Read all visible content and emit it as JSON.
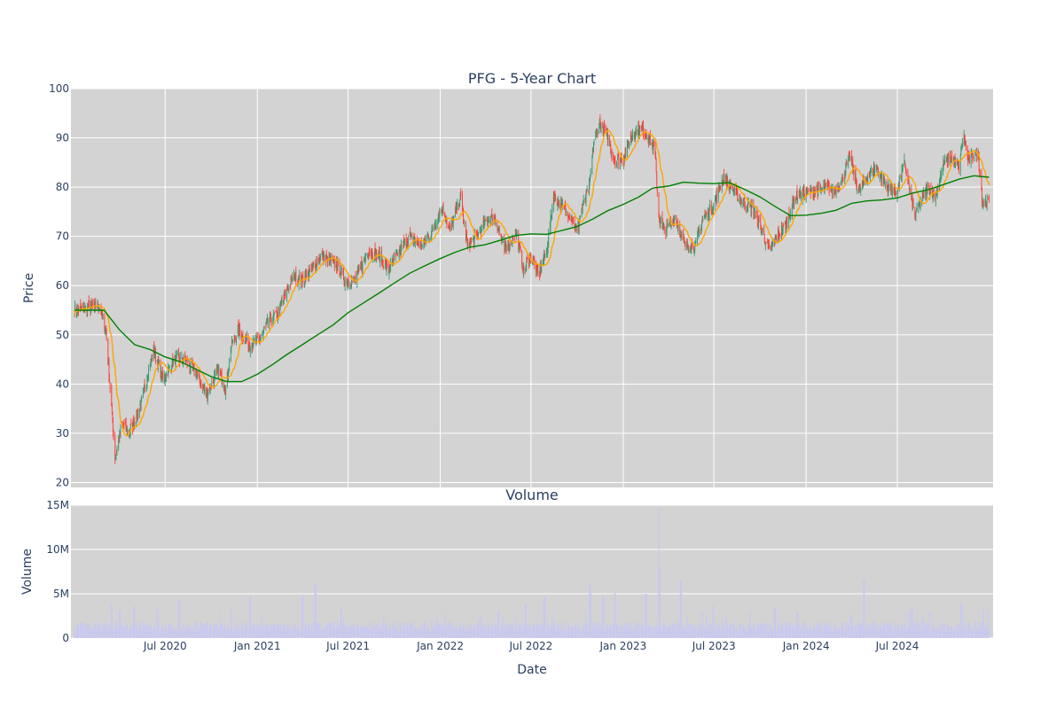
{
  "chart_data": [
    {
      "type": "candlestick",
      "title": "PFG - 5-Year Chart",
      "ylabel": "Price",
      "ylim": [
        19,
        100
      ],
      "yticks": [
        20,
        30,
        40,
        50,
        60,
        70,
        80,
        90,
        100
      ],
      "xlim": [
        "2019-12-26",
        "2025-01-08"
      ],
      "grid": true,
      "plot_background": "#d3d3d3",
      "colors": {
        "increasing": "#3d9970",
        "decreasing": "#ff4136",
        "ma_short": "orange",
        "ma_long": "green"
      },
      "close_anchors": [
        {
          "date": "2020-01-02",
          "close": 55
        },
        {
          "date": "2020-02-20",
          "close": 56
        },
        {
          "date": "2020-03-05",
          "close": 51
        },
        {
          "date": "2020-03-12",
          "close": 41
        },
        {
          "date": "2020-03-23",
          "close": 25
        },
        {
          "date": "2020-04-06",
          "close": 32
        },
        {
          "date": "2020-04-20",
          "close": 30
        },
        {
          "date": "2020-05-11",
          "close": 35
        },
        {
          "date": "2020-06-08",
          "close": 47
        },
        {
          "date": "2020-06-26",
          "close": 41
        },
        {
          "date": "2020-07-20",
          "close": 45
        },
        {
          "date": "2020-08-10",
          "close": 45
        },
        {
          "date": "2020-09-01",
          "close": 42
        },
        {
          "date": "2020-09-22",
          "close": 38
        },
        {
          "date": "2020-10-15",
          "close": 43
        },
        {
          "date": "2020-10-30",
          "close": 39
        },
        {
          "date": "2020-11-10",
          "close": 48
        },
        {
          "date": "2020-11-25",
          "close": 51
        },
        {
          "date": "2020-12-15",
          "close": 48
        },
        {
          "date": "2021-01-05",
          "close": 49
        },
        {
          "date": "2021-01-25",
          "close": 53
        },
        {
          "date": "2021-02-10",
          "close": 54
        },
        {
          "date": "2021-03-01",
          "close": 59
        },
        {
          "date": "2021-03-15",
          "close": 62
        },
        {
          "date": "2021-04-01",
          "close": 61
        },
        {
          "date": "2021-05-10",
          "close": 66
        },
        {
          "date": "2021-06-10",
          "close": 64
        },
        {
          "date": "2021-06-25",
          "close": 61
        },
        {
          "date": "2021-07-15",
          "close": 61
        },
        {
          "date": "2021-08-10",
          "close": 67
        },
        {
          "date": "2021-09-01",
          "close": 66
        },
        {
          "date": "2021-09-20",
          "close": 63
        },
        {
          "date": "2021-10-05",
          "close": 66
        },
        {
          "date": "2021-11-01",
          "close": 70
        },
        {
          "date": "2021-11-26",
          "close": 68
        },
        {
          "date": "2021-12-15",
          "close": 71
        },
        {
          "date": "2022-01-05",
          "close": 76
        },
        {
          "date": "2022-01-20",
          "close": 71
        },
        {
          "date": "2022-02-10",
          "close": 78
        },
        {
          "date": "2022-02-24",
          "close": 68
        },
        {
          "date": "2022-03-15",
          "close": 70
        },
        {
          "date": "2022-04-01",
          "close": 73
        },
        {
          "date": "2022-04-20",
          "close": 74
        },
        {
          "date": "2022-05-10",
          "close": 67
        },
        {
          "date": "2022-06-01",
          "close": 71
        },
        {
          "date": "2022-06-16",
          "close": 63
        },
        {
          "date": "2022-07-01",
          "close": 66
        },
        {
          "date": "2022-07-15",
          "close": 62
        },
        {
          "date": "2022-08-01",
          "close": 67
        },
        {
          "date": "2022-08-15",
          "close": 78
        },
        {
          "date": "2022-09-01",
          "close": 76
        },
        {
          "date": "2022-09-20",
          "close": 74
        },
        {
          "date": "2022-09-30",
          "close": 71
        },
        {
          "date": "2022-10-15",
          "close": 77
        },
        {
          "date": "2022-10-25",
          "close": 80
        },
        {
          "date": "2022-11-03",
          "close": 89
        },
        {
          "date": "2022-11-15",
          "close": 93
        },
        {
          "date": "2022-12-01",
          "close": 90
        },
        {
          "date": "2022-12-15",
          "close": 85
        },
        {
          "date": "2023-01-02",
          "close": 86
        },
        {
          "date": "2023-01-20",
          "close": 91
        },
        {
          "date": "2023-02-05",
          "close": 92
        },
        {
          "date": "2023-02-20",
          "close": 90
        },
        {
          "date": "2023-03-05",
          "close": 88
        },
        {
          "date": "2023-03-13",
          "close": 74
        },
        {
          "date": "2023-03-25",
          "close": 71
        },
        {
          "date": "2023-04-15",
          "close": 74
        },
        {
          "date": "2023-05-05",
          "close": 68
        },
        {
          "date": "2023-05-25",
          "close": 68
        },
        {
          "date": "2023-06-10",
          "close": 74
        },
        {
          "date": "2023-06-30",
          "close": 76
        },
        {
          "date": "2023-07-20",
          "close": 82
        },
        {
          "date": "2023-08-05",
          "close": 80
        },
        {
          "date": "2023-08-25",
          "close": 77
        },
        {
          "date": "2023-09-15",
          "close": 76
        },
        {
          "date": "2023-10-05",
          "close": 71
        },
        {
          "date": "2023-10-20",
          "close": 67
        },
        {
          "date": "2023-11-05",
          "close": 70
        },
        {
          "date": "2023-11-20",
          "close": 72
        },
        {
          "date": "2023-12-10",
          "close": 78
        },
        {
          "date": "2023-12-31",
          "close": 79
        },
        {
          "date": "2024-01-20",
          "close": 79
        },
        {
          "date": "2024-02-10",
          "close": 80
        },
        {
          "date": "2024-02-25",
          "close": 79
        },
        {
          "date": "2024-03-10",
          "close": 81
        },
        {
          "date": "2024-03-28",
          "close": 86
        },
        {
          "date": "2024-04-15",
          "close": 79
        },
        {
          "date": "2024-05-01",
          "close": 82
        },
        {
          "date": "2024-05-20",
          "close": 84
        },
        {
          "date": "2024-06-10",
          "close": 80
        },
        {
          "date": "2024-06-30",
          "close": 79
        },
        {
          "date": "2024-07-15",
          "close": 85
        },
        {
          "date": "2024-08-05",
          "close": 74
        },
        {
          "date": "2024-08-20",
          "close": 78
        },
        {
          "date": "2024-09-01",
          "close": 80
        },
        {
          "date": "2024-09-15",
          "close": 78
        },
        {
          "date": "2024-10-01",
          "close": 85
        },
        {
          "date": "2024-10-15",
          "close": 86
        },
        {
          "date": "2024-11-01",
          "close": 84
        },
        {
          "date": "2024-11-10",
          "close": 91
        },
        {
          "date": "2024-11-20",
          "close": 85
        },
        {
          "date": "2024-12-01",
          "close": 87
        },
        {
          "date": "2024-12-10",
          "close": 86
        },
        {
          "date": "2024-12-18",
          "close": 77
        },
        {
          "date": "2024-12-31",
          "close": 77
        }
      ],
      "ma_long_anchors": [
        {
          "date": "2020-01-02",
          "value": 55
        },
        {
          "date": "2020-03-01",
          "value": 55
        },
        {
          "date": "2020-04-01",
          "value": 51
        },
        {
          "date": "2020-05-01",
          "value": 48
        },
        {
          "date": "2020-06-01",
          "value": 47
        },
        {
          "date": "2020-07-01",
          "value": 45.5
        },
        {
          "date": "2020-08-01",
          "value": 44.5
        },
        {
          "date": "2020-09-01",
          "value": 43
        },
        {
          "date": "2020-10-01",
          "value": 41.5
        },
        {
          "date": "2020-11-01",
          "value": 40.5
        },
        {
          "date": "2020-12-01",
          "value": 40.5
        },
        {
          "date": "2021-01-01",
          "value": 42
        },
        {
          "date": "2021-02-01",
          "value": 44
        },
        {
          "date": "2021-03-01",
          "value": 46
        },
        {
          "date": "2021-04-01",
          "value": 48
        },
        {
          "date": "2021-05-01",
          "value": 50
        },
        {
          "date": "2021-06-01",
          "value": 52
        },
        {
          "date": "2021-07-01",
          "value": 54.5
        },
        {
          "date": "2021-08-01",
          "value": 56.5
        },
        {
          "date": "2021-09-01",
          "value": 58.5
        },
        {
          "date": "2021-10-01",
          "value": 60.5
        },
        {
          "date": "2021-11-01",
          "value": 62.5
        },
        {
          "date": "2021-12-01",
          "value": 64
        },
        {
          "date": "2022-01-01",
          "value": 65.5
        },
        {
          "date": "2022-02-01",
          "value": 66.8
        },
        {
          "date": "2022-03-01",
          "value": 67.8
        },
        {
          "date": "2022-04-01",
          "value": 68.3
        },
        {
          "date": "2022-05-01",
          "value": 69.2
        },
        {
          "date": "2022-06-01",
          "value": 70.2
        },
        {
          "date": "2022-07-01",
          "value": 70.5
        },
        {
          "date": "2022-08-01",
          "value": 70.4
        },
        {
          "date": "2022-09-01",
          "value": 71.2
        },
        {
          "date": "2022-10-01",
          "value": 72
        },
        {
          "date": "2022-11-01",
          "value": 73.5
        },
        {
          "date": "2022-12-01",
          "value": 75.2
        },
        {
          "date": "2023-01-01",
          "value": 76.5
        },
        {
          "date": "2023-02-01",
          "value": 78
        },
        {
          "date": "2023-03-01",
          "value": 79.8
        },
        {
          "date": "2023-04-01",
          "value": 80.2
        },
        {
          "date": "2023-05-01",
          "value": 81
        },
        {
          "date": "2023-06-01",
          "value": 80.8
        },
        {
          "date": "2023-07-01",
          "value": 80.7
        },
        {
          "date": "2023-08-01",
          "value": 80.9
        },
        {
          "date": "2023-09-01",
          "value": 79.5
        },
        {
          "date": "2023-10-01",
          "value": 78
        },
        {
          "date": "2023-11-01",
          "value": 76
        },
        {
          "date": "2023-12-01",
          "value": 74.2
        },
        {
          "date": "2024-01-01",
          "value": 74.3
        },
        {
          "date": "2024-02-01",
          "value": 74.7
        },
        {
          "date": "2024-03-01",
          "value": 75.3
        },
        {
          "date": "2024-04-01",
          "value": 76.7
        },
        {
          "date": "2024-05-01",
          "value": 77.2
        },
        {
          "date": "2024-06-01",
          "value": 77.4
        },
        {
          "date": "2024-07-01",
          "value": 77.8
        },
        {
          "date": "2024-08-01",
          "value": 78.8
        },
        {
          "date": "2024-09-01",
          "value": 79.5
        },
        {
          "date": "2024-10-01",
          "value": 80.5
        },
        {
          "date": "2024-11-01",
          "value": 81.6
        },
        {
          "date": "2024-12-01",
          "value": 82.3
        },
        {
          "date": "2024-12-31",
          "value": 82
        }
      ]
    },
    {
      "type": "bar",
      "title": "Volume",
      "xlabel": "Date",
      "ylabel": "Volume",
      "ylim": [
        0,
        15000000
      ],
      "yticks": [
        0,
        5000000,
        10000000,
        15000000
      ],
      "ytick_labels": [
        "0",
        "5M",
        "10M",
        "15M"
      ],
      "xticks": [
        "2020-07-01",
        "2021-01-01",
        "2021-07-01",
        "2022-01-01",
        "2022-07-01",
        "2023-01-01",
        "2023-07-01",
        "2024-01-01",
        "2024-07-01"
      ],
      "xtick_labels": [
        "Jul 2020",
        "Jan 2021",
        "Jul 2021",
        "Jan 2022",
        "Jul 2022",
        "Jan 2023",
        "Jul 2023",
        "Jan 2024",
        "Jul 2024"
      ],
      "bar_color": "#c8c8f0",
      "baseline_volume": 1300000,
      "spikes": [
        {
          "date": "2020-03-16",
          "volume": 3900000
        },
        {
          "date": "2020-04-01",
          "volume": 3200000
        },
        {
          "date": "2020-05-01",
          "volume": 3600000
        },
        {
          "date": "2020-06-15",
          "volume": 3500000
        },
        {
          "date": "2020-07-29",
          "volume": 4300000
        },
        {
          "date": "2020-11-09",
          "volume": 3300000
        },
        {
          "date": "2020-12-18",
          "volume": 4700000
        },
        {
          "date": "2021-04-01",
          "volume": 4800000
        },
        {
          "date": "2021-04-27",
          "volume": 6000000
        },
        {
          "date": "2021-06-18",
          "volume": 3500000
        },
        {
          "date": "2022-04-27",
          "volume": 3100000
        },
        {
          "date": "2022-06-20",
          "volume": 3900000
        },
        {
          "date": "2022-07-28",
          "volume": 4700000
        },
        {
          "date": "2022-10-27",
          "volume": 6000000
        },
        {
          "date": "2022-11-22",
          "volume": 4700000
        },
        {
          "date": "2022-12-16",
          "volume": 5100000
        },
        {
          "date": "2023-02-15",
          "volume": 5000000
        },
        {
          "date": "2023-03-13",
          "volume": 14700000
        },
        {
          "date": "2023-03-14",
          "volume": 8000000
        },
        {
          "date": "2023-04-26",
          "volume": 6500000
        },
        {
          "date": "2023-06-30",
          "volume": 3600000
        },
        {
          "date": "2023-10-31",
          "volume": 3300000
        },
        {
          "date": "2023-12-15",
          "volume": 3000000
        },
        {
          "date": "2024-04-26",
          "volume": 6600000
        },
        {
          "date": "2024-07-30",
          "volume": 3300000
        },
        {
          "date": "2024-11-06",
          "volume": 4000000
        },
        {
          "date": "2024-12-20",
          "volume": 3200000
        }
      ]
    }
  ]
}
